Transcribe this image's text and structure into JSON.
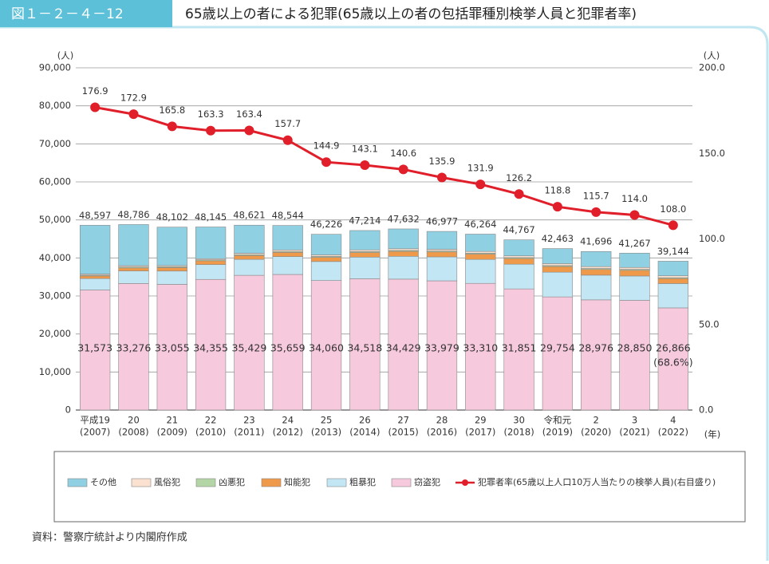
{
  "header": {
    "figure_no": "図１－２－４－12",
    "title": "65歳以上の者による犯罪(65歳以上の者の包括罪種別検挙人員と犯罪者率)"
  },
  "chart_data": {
    "type": "bar",
    "stacked": true,
    "categories": [
      "平成19",
      "20",
      "21",
      "22",
      "23",
      "24",
      "25",
      "26",
      "27",
      "28",
      "29",
      "30",
      "令和元",
      "2",
      "3",
      "4"
    ],
    "category_years": [
      "(2007)",
      "(2008)",
      "(2009)",
      "(2010)",
      "(2011)",
      "(2012)",
      "(2013)",
      "(2014)",
      "(2015)",
      "(2016)",
      "(2017)",
      "(2018)",
      "(2019)",
      "(2020)",
      "(2021)",
      "(2022)"
    ],
    "series": [
      {
        "name": "窃盗犯",
        "color": "#f6c9dc",
        "values": [
          31573,
          33276,
          33055,
          34355,
          35429,
          35659,
          34060,
          34518,
          34429,
          33979,
          33310,
          31851,
          29754,
          28976,
          28850,
          26866
        ],
        "value_labels": [
          "31,573",
          "33,276",
          "33,055",
          "34,355",
          "35,429",
          "35,659",
          "34,060",
          "34,518",
          "34,429",
          "33,979",
          "33,310",
          "31,851",
          "29,754",
          "28,976",
          "28,850",
          "26,866"
        ]
      },
      {
        "name": "粗暴犯",
        "color": "#c3e6f4",
        "values": [
          3000,
          3300,
          3500,
          3900,
          4200,
          4700,
          5000,
          5700,
          6000,
          6300,
          6300,
          6500,
          6500,
          6500,
          6400,
          6400
        ]
      },
      {
        "name": "知能犯",
        "color": "#ef9a4a",
        "values": [
          700,
          800,
          900,
          1000,
          1000,
          1100,
          1100,
          1200,
          1300,
          1300,
          1400,
          1500,
          1500,
          1500,
          1500,
          1300
        ]
      },
      {
        "name": "凶悪犯",
        "color": "#b4d6a6",
        "values": [
          200,
          250,
          250,
          250,
          250,
          250,
          250,
          250,
          250,
          250,
          250,
          250,
          250,
          250,
          250,
          250
        ]
      },
      {
        "name": "風俗犯",
        "color": "#fbe1cf",
        "values": [
          300,
          350,
          300,
          300,
          350,
          400,
          400,
          450,
          450,
          450,
          450,
          450,
          500,
          500,
          500,
          500
        ]
      },
      {
        "name": "その他",
        "color": "#8fd0e2",
        "values": [
          12824,
          10810,
          10097,
          8340,
          7392,
          6435,
          5416,
          5096,
          5203,
          4698,
          4554,
          4216,
          3959,
          3970,
          3767,
          3828
        ]
      },
      {
        "name": "犯罪者率(65歳以上人口10万人当たりの検挙人員)(右目盛り)",
        "type": "line",
        "axis": "y2",
        "color": "#e01f2a",
        "values": [
          176.9,
          172.9,
          165.8,
          163.3,
          163.4,
          157.7,
          144.9,
          143.1,
          140.6,
          135.9,
          131.9,
          126.2,
          118.8,
          115.7,
          114.0,
          108.0
        ],
        "value_labels": [
          "176.9",
          "172.9",
          "165.8",
          "163.3",
          "163.4",
          "157.7",
          "144.9",
          "143.1",
          "140.6",
          "135.9",
          "131.9",
          "126.2",
          "118.8",
          "115.7",
          "114.0",
          "108.0"
        ]
      }
    ],
    "totals": {
      "values": [
        48597,
        48786,
        48102,
        48145,
        48621,
        48544,
        46226,
        47214,
        47632,
        46977,
        46264,
        44767,
        42463,
        41696,
        41267,
        39144
      ],
      "value_labels": [
        "48,597",
        "48,786",
        "48,102",
        "48,145",
        "48,621",
        "48,544",
        "46,226",
        "47,214",
        "47,632",
        "46,977",
        "46,264",
        "44,767",
        "42,463",
        "41,696",
        "41,267",
        "39,144"
      ]
    },
    "annotation": "(68.6%)",
    "ylim": [
      0,
      90000
    ],
    "yticks": [
      0,
      {
        "value": 10000,
        "label": "10,000"
      },
      {
        "value": 20000,
        "label": "20,000"
      },
      {
        "value": 30000,
        "label": "30,000"
      },
      {
        "value": 40000,
        "label": "40,000"
      },
      {
        "value": 50000,
        "label": "50,000"
      },
      {
        "value": 60000,
        "label": "60,000"
      },
      {
        "value": 70000,
        "label": "70,000"
      },
      {
        "value": 80000,
        "label": "80,000"
      },
      {
        "value": 90000,
        "label": "90,000"
      }
    ],
    "y2lim": [
      0,
      200
    ],
    "y2ticks": [
      {
        "value": 0,
        "label": "0.0"
      },
      {
        "value": 50,
        "label": "50.0"
      },
      {
        "value": 100,
        "label": "100.0"
      },
      {
        "value": 150,
        "label": "150.0"
      },
      {
        "value": 200,
        "label": "200.0"
      }
    ],
    "y_unit": "(人)",
    "y2_unit": "(人)",
    "x_unit": "(年)",
    "grid": true
  },
  "source": "資料：警察庁統計より内閣府作成"
}
